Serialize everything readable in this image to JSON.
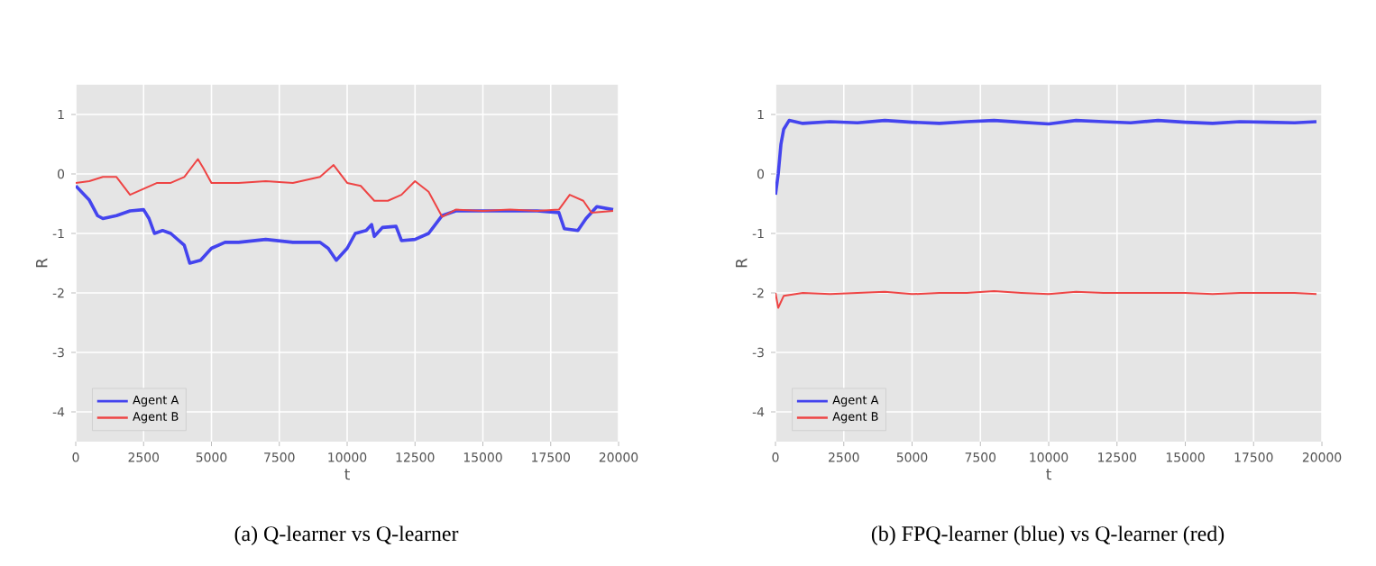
{
  "chart_data": [
    {
      "type": "line",
      "title": "(a) Q-learner vs Q-learner",
      "xlabel": "t",
      "ylabel": "R",
      "xlim": [
        0,
        20000
      ],
      "ylim": [
        -4.5,
        1.5
      ],
      "xticks": [
        0,
        2500,
        5000,
        7500,
        10000,
        12500,
        15000,
        17500,
        20000
      ],
      "yticks": [
        -4,
        -3,
        -2,
        -1,
        0,
        1
      ],
      "grid": true,
      "legend": "bottom left",
      "series": [
        {
          "name": "Agent A",
          "color": "#4444ee",
          "x": [
            0,
            500,
            800,
            1000,
            1500,
            2000,
            2500,
            2700,
            2900,
            3200,
            3500,
            4000,
            4200,
            4600,
            5000,
            5500,
            6000,
            7000,
            8000,
            9000,
            9300,
            9600,
            10000,
            10300,
            10700,
            10900,
            11000,
            11300,
            11800,
            12000,
            12500,
            13000,
            13500,
            14000,
            15000,
            16000,
            17000,
            17800,
            18000,
            18500,
            18800,
            19200,
            19800
          ],
          "values": [
            -0.2,
            -0.44,
            -0.7,
            -0.75,
            -0.7,
            -0.62,
            -0.6,
            -0.75,
            -1.0,
            -0.95,
            -1.0,
            -1.2,
            -1.5,
            -1.45,
            -1.25,
            -1.15,
            -1.15,
            -1.1,
            -1.15,
            -1.15,
            -1.25,
            -1.45,
            -1.25,
            -1.0,
            -0.95,
            -0.85,
            -1.05,
            -0.9,
            -0.88,
            -1.12,
            -1.1,
            -1.0,
            -0.7,
            -0.62,
            -0.62,
            -0.62,
            -0.62,
            -0.65,
            -0.92,
            -0.95,
            -0.75,
            -0.55,
            -0.6
          ]
        },
        {
          "name": "Agent B",
          "color": "#ee4444",
          "x": [
            0,
            500,
            1000,
            1500,
            2000,
            2500,
            3000,
            3500,
            4000,
            4500,
            4700,
            5000,
            5500,
            6000,
            7000,
            8000,
            9000,
            9500,
            10000,
            10500,
            11000,
            11500,
            12000,
            12500,
            13000,
            13500,
            14000,
            15000,
            16000,
            17000,
            17800,
            18200,
            18700,
            19000,
            19800
          ],
          "values": [
            -0.15,
            -0.12,
            -0.05,
            -0.05,
            -0.35,
            -0.25,
            -0.15,
            -0.15,
            -0.05,
            0.25,
            0.1,
            -0.15,
            -0.15,
            -0.15,
            -0.12,
            -0.15,
            -0.05,
            0.15,
            -0.15,
            -0.2,
            -0.45,
            -0.45,
            -0.35,
            -0.12,
            -0.3,
            -0.72,
            -0.6,
            -0.62,
            -0.6,
            -0.62,
            -0.6,
            -0.35,
            -0.45,
            -0.65,
            -0.62
          ]
        }
      ]
    },
    {
      "type": "line",
      "title": "(b) FPQ-learner (blue) vs Q-learner (red)",
      "xlabel": "t",
      "ylabel": "R",
      "xlim": [
        0,
        20000
      ],
      "ylim": [
        -4.5,
        1.5
      ],
      "xticks": [
        0,
        2500,
        5000,
        7500,
        10000,
        12500,
        15000,
        17500,
        20000
      ],
      "yticks": [
        -4,
        -3,
        -2,
        -1,
        0,
        1
      ],
      "grid": true,
      "legend": "bottom left",
      "series": [
        {
          "name": "Agent A",
          "color": "#4444ee",
          "x": [
            0,
            100,
            200,
            300,
            500,
            1000,
            2000,
            3000,
            4000,
            5000,
            6000,
            7000,
            8000,
            9000,
            10000,
            11000,
            12000,
            13000,
            14000,
            15000,
            16000,
            17000,
            18000,
            19000,
            19800
          ],
          "values": [
            -0.35,
            0.0,
            0.5,
            0.75,
            0.9,
            0.85,
            0.88,
            0.86,
            0.9,
            0.87,
            0.85,
            0.88,
            0.9,
            0.87,
            0.84,
            0.9,
            0.88,
            0.86,
            0.9,
            0.87,
            0.85,
            0.88,
            0.87,
            0.86,
            0.88
          ]
        },
        {
          "name": "Agent B",
          "color": "#ee4444",
          "x": [
            0,
            100,
            300,
            1000,
            2000,
            3000,
            4000,
            5000,
            6000,
            7000,
            8000,
            9000,
            10000,
            11000,
            12000,
            13000,
            14000,
            15000,
            16000,
            17000,
            18000,
            19000,
            19800
          ],
          "values": [
            -2.0,
            -2.25,
            -2.05,
            -2.0,
            -2.02,
            -2.0,
            -1.98,
            -2.02,
            -2.0,
            -2.0,
            -1.97,
            -2.0,
            -2.02,
            -1.98,
            -2.0,
            -2.0,
            -2.0,
            -2.0,
            -2.02,
            -2.0,
            -2.0,
            -2.0,
            -2.02
          ]
        }
      ]
    }
  ]
}
